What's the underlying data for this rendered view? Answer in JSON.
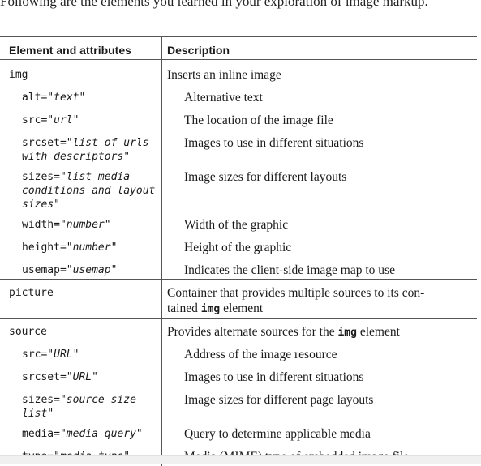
{
  "intro": "Following are the elements you learned in your exploration of image markup.",
  "headers": {
    "element": "Element and attributes",
    "description": "Description"
  },
  "rows": [
    {
      "el_prefix": "img",
      "el_italic": "",
      "el_suffix": "",
      "desc_pre": "Inserts an inline image",
      "desc_code": "",
      "desc_post": ""
    },
    {
      "el_prefix": "alt=\"",
      "el_italic": "text",
      "el_suffix": "\"",
      "desc_pre": "Alternative text",
      "desc_code": "",
      "desc_post": ""
    },
    {
      "el_prefix": "src=\"",
      "el_italic": "url",
      "el_suffix": "\"",
      "desc_pre": "The location of the image file",
      "desc_code": "",
      "desc_post": ""
    },
    {
      "el_prefix": "srcset=\"",
      "el_italic": "list of urls\nwith descriptors",
      "el_suffix": "\"",
      "desc_pre": "Images to use in different situations",
      "desc_code": "",
      "desc_post": ""
    },
    {
      "el_prefix": "sizes=\"",
      "el_italic": "list media\nconditions and layout\nsizes",
      "el_suffix": "\"",
      "desc_pre": "Image sizes for different layouts",
      "desc_code": "",
      "desc_post": ""
    },
    {
      "el_prefix": "width=\"",
      "el_italic": "number",
      "el_suffix": "\"",
      "desc_pre": "Width of the graphic",
      "desc_code": "",
      "desc_post": ""
    },
    {
      "el_prefix": "height=\"",
      "el_italic": "number",
      "el_suffix": "\"",
      "desc_pre": "Height of the graphic",
      "desc_code": "",
      "desc_post": ""
    },
    {
      "el_prefix": "usemap=\"",
      "el_italic": "usemap",
      "el_suffix": "\"",
      "desc_pre": "Indicates the client-side image map to use",
      "desc_code": "",
      "desc_post": ""
    },
    {
      "el_prefix": "picture",
      "el_italic": "",
      "el_suffix": "",
      "desc_pre": "Container that provides multiple sources to its con-\ntained ",
      "desc_code": "img",
      "desc_post": " element"
    },
    {
      "el_prefix": "source",
      "el_italic": "",
      "el_suffix": "",
      "desc_pre": "Provides alternate sources for the ",
      "desc_code": "img",
      "desc_post": " element"
    },
    {
      "el_prefix": "src=\"",
      "el_italic": "URL",
      "el_suffix": "\"",
      "desc_pre": "Address of the image resource",
      "desc_code": "",
      "desc_post": ""
    },
    {
      "el_prefix": "srcset=\"",
      "el_italic": "URL",
      "el_suffix": "\"",
      "desc_pre": "Images to use in different situations",
      "desc_code": "",
      "desc_post": ""
    },
    {
      "el_prefix": "sizes=\"",
      "el_italic": "source size\nlist",
      "el_suffix": "\"",
      "desc_pre": "Image sizes for different page layouts",
      "desc_code": "",
      "desc_post": ""
    },
    {
      "el_prefix": "media=\"",
      "el_italic": "media query",
      "el_suffix": "\"",
      "desc_pre": "Query to determine applicable media",
      "desc_code": "",
      "desc_post": ""
    },
    {
      "el_prefix": "type=\"",
      "el_italic": "media type",
      "el_suffix": "\"",
      "desc_pre": "Media (MIME) type of embedded image file",
      "desc_code": "",
      "desc_post": ""
    }
  ]
}
